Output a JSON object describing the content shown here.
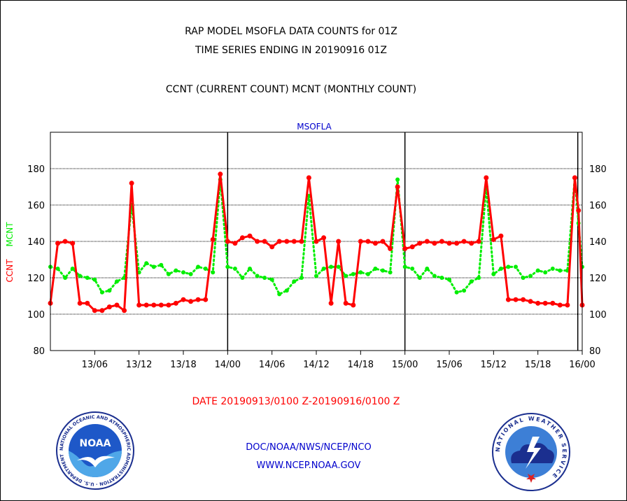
{
  "header": {
    "title_line1": "RAP MODEL MSOFLA DATA COUNTS for 01Z",
    "title_line2": "TIME SERIES ENDING IN 20190916 01Z",
    "subtitle": "CCNT (CURRENT COUNT) MCNT (MONTHLY COUNT)"
  },
  "footer": {
    "date_range": "DATE 20190913/0100 Z-20190916/0100 Z",
    "org_line": "DOC/NOAA/NWS/NCEP/NCO",
    "url": "WWW.NCEP.NOAA.GOV",
    "noaa_logo_text": "NOAA",
    "noaa_seal_text": "NATIONAL OCEANIC AND ATMOSPHERIC ADMINISTRATION · U.S. DEPARTMENT OF COMMERCE",
    "nws_seal_text": "NATIONAL WEATHER SERVICE"
  },
  "colors": {
    "ccnt": "#ff0000",
    "mcnt": "#00ee00",
    "station": "#0000cc",
    "footer_blue": "#0000cc"
  },
  "chart_data": {
    "type": "line",
    "title": "MSOFLA",
    "ylabel_series": [
      "CCNT",
      "MCNT"
    ],
    "ylim": [
      80,
      200
    ],
    "yticks": [
      80,
      100,
      120,
      140,
      160,
      180
    ],
    "xlim": [
      0,
      72
    ],
    "xticks": [
      {
        "x": 6,
        "label": "13/06"
      },
      {
        "x": 12,
        "label": "13/12"
      },
      {
        "x": 18,
        "label": "13/18"
      },
      {
        "x": 24,
        "label": "14/00"
      },
      {
        "x": 30,
        "label": "14/06"
      },
      {
        "x": 36,
        "label": "14/12"
      },
      {
        "x": 42,
        "label": "14/18"
      },
      {
        "x": 48,
        "label": "15/00"
      },
      {
        "x": 54,
        "label": "15/06"
      },
      {
        "x": 60,
        "label": "15/12"
      },
      {
        "x": 66,
        "label": "15/18"
      },
      {
        "x": 72,
        "label": "16/00"
      }
    ],
    "day_lines": [
      24,
      48,
      71.4
    ],
    "grid": true,
    "series": [
      {
        "name": "CCNT",
        "style": "solid",
        "x": [
          0,
          1,
          2,
          3,
          4,
          5,
          6,
          7,
          8,
          9,
          10,
          11,
          12,
          13,
          14,
          15,
          16,
          17,
          18,
          19,
          20,
          21,
          22,
          23,
          24,
          25,
          26,
          27,
          28,
          29,
          30,
          31,
          32,
          33,
          34,
          35,
          36,
          37,
          38,
          39,
          40,
          41,
          42,
          43,
          44,
          45,
          46,
          47,
          48,
          49,
          50,
          51,
          52,
          53,
          54,
          55,
          56,
          57,
          58,
          59,
          60,
          61,
          62,
          63,
          64,
          65,
          66,
          67,
          68,
          69,
          70,
          71,
          71.5,
          72
        ],
        "y": [
          106,
          139,
          140,
          139,
          106,
          106,
          102,
          102,
          104,
          105,
          102,
          172,
          105,
          105,
          105,
          105,
          105,
          106,
          108,
          107,
          108,
          108,
          141,
          177,
          140,
          139,
          142,
          143,
          140,
          140,
          137,
          140,
          140,
          140,
          140,
          175,
          140,
          142,
          106,
          140,
          106,
          105,
          140,
          140,
          139,
          140,
          136,
          170,
          136,
          137,
          139,
          140,
          139,
          140,
          139,
          139,
          140,
          139,
          140,
          175,
          141,
          143,
          108,
          108,
          108,
          107,
          106,
          106,
          106,
          105,
          105,
          175,
          157,
          105
        ]
      },
      {
        "name": "MCNT",
        "style": "dotted",
        "x": [
          0,
          1,
          2,
          3,
          4,
          5,
          6,
          7,
          8,
          9,
          10,
          11,
          12,
          13,
          14,
          15,
          16,
          17,
          18,
          19,
          20,
          21,
          22,
          23,
          24,
          25,
          26,
          27,
          28,
          29,
          30,
          31,
          32,
          33,
          34,
          35,
          36,
          37,
          38,
          39,
          40,
          41,
          42,
          43,
          44,
          45,
          46,
          47,
          48,
          49,
          50,
          51,
          52,
          53,
          54,
          55,
          56,
          57,
          58,
          59,
          60,
          61,
          62,
          63,
          64,
          65,
          66,
          67,
          68,
          69,
          70,
          71,
          71.5,
          72
        ],
        "y": [
          126,
          125,
          120,
          125,
          121,
          120,
          119,
          112,
          113,
          118,
          120,
          160,
          123,
          128,
          126,
          127,
          122,
          124,
          123,
          122,
          126,
          125,
          123,
          174,
          126,
          125,
          120,
          125,
          121,
          120,
          119,
          111,
          113,
          118,
          120,
          165,
          121,
          125,
          126,
          126,
          121,
          122,
          123,
          122,
          125,
          124,
          123,
          174,
          126,
          125,
          120,
          125,
          121,
          120,
          119,
          112,
          113,
          118,
          120,
          170,
          122,
          125,
          126,
          126,
          120,
          121,
          124,
          123,
          125,
          124,
          124,
          175,
          150,
          126
        ]
      }
    ]
  }
}
